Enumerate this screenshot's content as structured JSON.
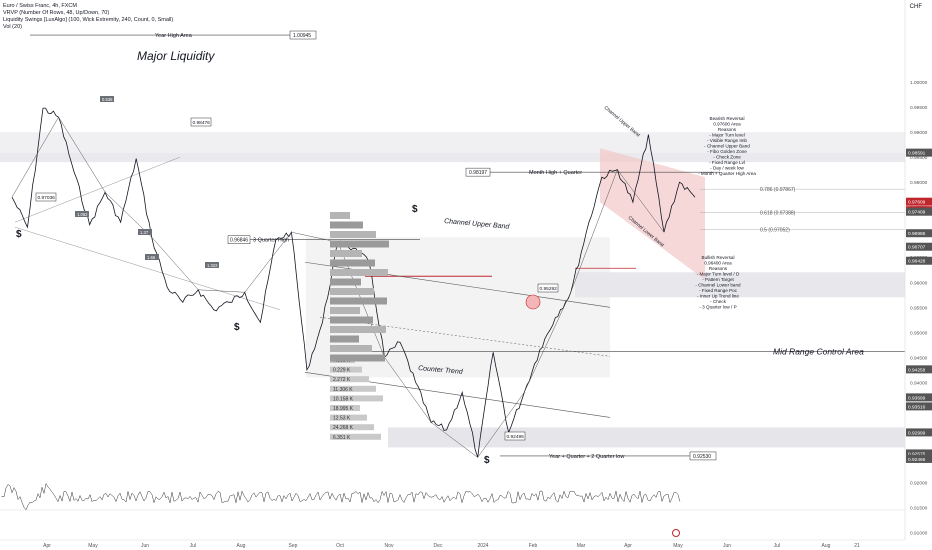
{
  "header": {
    "symbol_line": "Euro / Swiss Franc, 4h, FXCM",
    "indicator_1": "VRVP (Number Of Rows, 48, Up/Down, 70)",
    "indicator_2": "Liquidity Swings [LuxAlgo] (100, Wick Extremity, 240, Count, 0, Small)",
    "indicator_3": "Vol (20)",
    "currency": "CHF"
  },
  "chart_data": {
    "type": "line",
    "title": "",
    "ylim": [
      0.911,
      1.013
    ],
    "price_axis_ticks": [
      "1.00000",
      "0.99500",
      "0.99000",
      "0.98500",
      "0.98000",
      "0.97500",
      "0.97000",
      "0.96500",
      "0.96000",
      "0.95500",
      "0.95000",
      "0.94500",
      "0.94000",
      "0.93500",
      "0.93000",
      "0.92500",
      "0.92000",
      "0.91500",
      "0.91000"
    ],
    "time_axis_labels": [
      "Apr",
      "May",
      "Jun",
      "Jul",
      "Aug",
      "Sep",
      "Oct",
      "Nov",
      "Dec",
      "2024",
      "Feb",
      "Mar",
      "Apr",
      "May",
      "Jun",
      "Jul",
      "Aug",
      "21"
    ],
    "price_swings": [
      {
        "t": "Mar",
        "p": 0.977
      },
      {
        "t": "Mar",
        "p": 0.971
      },
      {
        "t": "Apr",
        "p": 0.9948
      },
      {
        "t": "Apr",
        "p": 0.993
      },
      {
        "t": "May",
        "p": 0.982
      },
      {
        "t": "May",
        "p": 0.9715
      },
      {
        "t": "Jun",
        "p": 0.978
      },
      {
        "t": "Jun",
        "p": 0.972
      },
      {
        "t": "Jul",
        "p": 0.9847
      },
      {
        "t": "Jul",
        "p": 0.969
      },
      {
        "t": "Jul",
        "p": 0.959
      },
      {
        "t": "Aug",
        "p": 0.956
      },
      {
        "t": "Aug",
        "p": 0.9585
      },
      {
        "t": "Aug",
        "p": 0.9545
      },
      {
        "t": "Sep",
        "p": 0.956
      },
      {
        "t": "Sep",
        "p": 0.958
      },
      {
        "t": "Sep",
        "p": 0.952
      },
      {
        "t": "Oct",
        "p": 0.9685
      },
      {
        "t": "Oct",
        "p": 0.97
      },
      {
        "t": "Oct",
        "p": 0.9425
      },
      {
        "t": "Nov",
        "p": 0.952
      },
      {
        "t": "Nov",
        "p": 0.968
      },
      {
        "t": "Nov",
        "p": 0.9668
      },
      {
        "t": "Dec",
        "p": 0.964
      },
      {
        "t": "Dec",
        "p": 0.945
      },
      {
        "t": "Dec",
        "p": 0.948
      },
      {
        "t": "Dec",
        "p": 0.94
      },
      {
        "t": "Dec",
        "p": 0.932
      },
      {
        "t": "2024",
        "p": 0.9305
      },
      {
        "t": "2024",
        "p": 0.938
      },
      {
        "t": "2024",
        "p": 0.925
      },
      {
        "t": "Jan",
        "p": 0.946
      },
      {
        "t": "Jan",
        "p": 0.93
      },
      {
        "t": "Feb",
        "p": 0.938
      },
      {
        "t": "Feb",
        "p": 0.9465
      },
      {
        "t": "Feb",
        "p": 0.9529
      },
      {
        "t": "Mar",
        "p": 0.958
      },
      {
        "t": "Mar",
        "p": 0.97
      },
      {
        "t": "Mar",
        "p": 0.981
      },
      {
        "t": "Apr",
        "p": 0.9825
      },
      {
        "t": "Apr",
        "p": 0.976
      },
      {
        "t": "Apr",
        "p": 0.9895
      },
      {
        "t": "Apr",
        "p": 0.97
      },
      {
        "t": "Apr",
        "p": 0.98
      },
      {
        "t": "May",
        "p": 0.977
      }
    ],
    "horizontal_levels": [
      {
        "label": "Year High Area",
        "value": "1.00945"
      },
      {
        "label": "3 Quarter High",
        "value": "0.96846"
      },
      {
        "label": "Month High + Quarter",
        "value": "0.98197"
      },
      {
        "label": "Mid Range Control Area",
        "value": ""
      },
      {
        "label": "Year + Quarter + 2 Quarter low",
        "value": "0.92530"
      }
    ],
    "fib_levels": [
      {
        "label": "0.786 (0.97867)"
      },
      {
        "label": "0.618 (0.97388)"
      },
      {
        "label": "0.5 (0.97052)"
      }
    ],
    "price_axis_badges": [
      "0.97609",
      "21:11:10",
      "0.98591",
      "0.97409",
      "0.96985",
      "0.96428",
      "0.96707",
      "0.94258",
      "0.93699",
      "0.93516",
      "0.92999",
      "0.92575",
      "0.92466"
    ],
    "swing_value_tags": [
      "0.97036",
      "0.98476",
      "0.95292",
      "0.92495"
    ],
    "volume_profile_rows": [
      "7.395 K",
      "0.229 K",
      "2.272 K",
      "11.306 K",
      "10.158 K",
      "18.995 K",
      "12.53 K",
      "24.268 K",
      "6.351 K"
    ],
    "annotations": {
      "major_liquidity": "Major Liquidity",
      "channel_upper_band": "Channel Upper Band",
      "counter_trend": "Counter Trend",
      "channel_upper_band_small": "Channel Upper Band",
      "channel_lower_band": "Channel Lower Band",
      "bearish_block": [
        "Bearish Reversal",
        "0.97600 Area",
        "Reasons",
        "- Major Turn level",
        "- Visible Range Imb",
        "- Channel Upper Band",
        "- Fibo Golden Zone",
        "- Check Zone",
        "- Fixed Range Lvl",
        "- Day / week low",
        "- Month + Quarter High Area"
      ],
      "bullish_block": [
        "Bullish Reversal",
        "0.96400 Area",
        "Reasons",
        "- Major Turn level / D",
        "- Pattern Target",
        "- Channel Lower band",
        "- Fixed Range Poc",
        "- Inner Up Trend line",
        "- Check",
        "- 3 Quarter low / P"
      ]
    },
    "small_swing_labels": [
      "0.536",
      "1.062",
      "1.66",
      "1.322",
      "1.37"
    ],
    "dollar_marks": [
      "$",
      "$",
      "$",
      "$"
    ]
  }
}
